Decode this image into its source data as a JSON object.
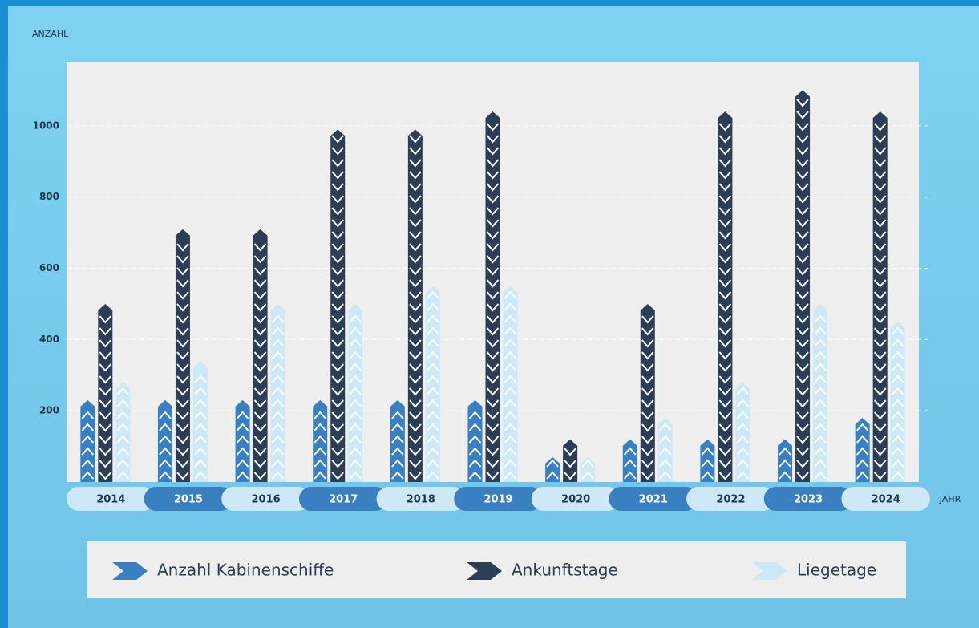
{
  "chart_data": {
    "type": "bar",
    "y_label": "ANZAHL",
    "x_label": "JAHR",
    "categories": [
      "2014",
      "2015",
      "2016",
      "2017",
      "2018",
      "2019",
      "2020",
      "2021",
      "2022",
      "2023",
      "2024"
    ],
    "series": [
      {
        "name": "Anzahl Kabinenschiffe",
        "color": "#3a7fc0",
        "values": [
          230,
          230,
          230,
          230,
          230,
          230,
          70,
          120,
          120,
          120,
          180
        ]
      },
      {
        "name": "Ankunftstage",
        "color": "#2c3e55",
        "values": [
          500,
          710,
          710,
          990,
          990,
          1040,
          120,
          500,
          1040,
          1100,
          1040
        ]
      },
      {
        "name": "Liegetage",
        "color": "#cde9f8",
        "values": [
          280,
          340,
          500,
          500,
          550,
          550,
          70,
          180,
          280,
          500,
          450
        ]
      }
    ],
    "ylim": [
      0,
      1180
    ],
    "yticks": [
      200,
      400,
      600,
      800,
      1000
    ],
    "grid": true
  }
}
